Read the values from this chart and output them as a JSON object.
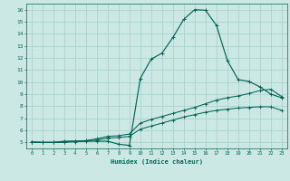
{
  "xlabel": "Humidex (Indice chaleur)",
  "ylabel": "",
  "background_color": "#cce8e4",
  "grid_color": "#aad4cf",
  "line_color": "#006655",
  "xlim": [
    -0.5,
    23.5
  ],
  "ylim": [
    4.5,
    16.5
  ],
  "yticks": [
    5,
    6,
    7,
    8,
    9,
    10,
    11,
    12,
    13,
    14,
    15,
    16
  ],
  "xticks": [
    0,
    1,
    2,
    3,
    4,
    5,
    6,
    7,
    8,
    9,
    10,
    11,
    12,
    13,
    14,
    15,
    16,
    17,
    18,
    19,
    20,
    21,
    22,
    23
  ],
  "xtick_labels": [
    "0",
    "1",
    "2",
    "3",
    "4",
    "5",
    "6",
    "7",
    "8",
    "9",
    "10",
    "11",
    "12",
    "13",
    "14",
    "15",
    "16",
    "17",
    "18",
    "19",
    "20",
    "21",
    "22",
    "23"
  ],
  "series1_x": [
    0,
    1,
    2,
    3,
    4,
    5,
    6,
    7,
    8,
    9,
    10,
    11,
    12,
    13,
    14,
    15,
    16,
    17,
    18,
    19,
    20,
    21,
    22,
    23
  ],
  "series1_y": [
    5.05,
    5.0,
    5.0,
    5.1,
    5.1,
    5.1,
    5.1,
    5.1,
    4.85,
    4.75,
    10.3,
    11.9,
    12.4,
    13.7,
    15.2,
    16.0,
    15.95,
    14.7,
    11.8,
    10.2,
    10.05,
    9.6,
    9.0,
    8.7
  ],
  "series2_x": [
    0,
    1,
    2,
    3,
    4,
    5,
    6,
    7,
    8,
    9,
    10,
    11,
    12,
    13,
    14,
    15,
    16,
    17,
    18,
    19,
    20,
    21,
    22,
    23
  ],
  "series2_y": [
    5.0,
    5.0,
    5.0,
    5.05,
    5.1,
    5.15,
    5.3,
    5.5,
    5.55,
    5.7,
    6.6,
    6.9,
    7.15,
    7.4,
    7.65,
    7.9,
    8.2,
    8.5,
    8.7,
    8.85,
    9.05,
    9.3,
    9.4,
    8.8
  ],
  "series3_x": [
    0,
    1,
    2,
    3,
    4,
    5,
    6,
    7,
    8,
    9,
    10,
    11,
    12,
    13,
    14,
    15,
    16,
    17,
    18,
    19,
    20,
    21,
    22,
    23
  ],
  "series3_y": [
    5.0,
    5.0,
    5.0,
    5.0,
    5.05,
    5.1,
    5.2,
    5.35,
    5.4,
    5.5,
    6.1,
    6.35,
    6.6,
    6.85,
    7.1,
    7.3,
    7.5,
    7.65,
    7.75,
    7.85,
    7.9,
    7.95,
    7.95,
    7.65
  ]
}
